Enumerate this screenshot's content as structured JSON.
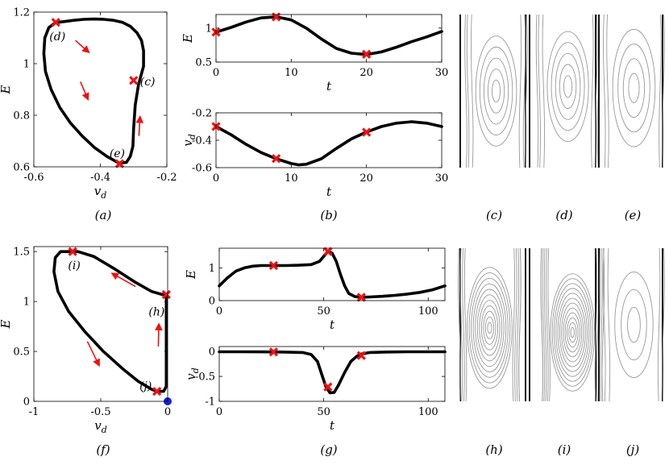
{
  "panel_labels": {
    "a": "(a)",
    "b": "(b)",
    "c": "(c)",
    "d": "(d)",
    "e": "(e)",
    "f": "(f)",
    "g": "(g)",
    "h": "(h)",
    "i": "(i)",
    "j": "(j)"
  },
  "axis_labels": {
    "E": "E",
    "vd": "v",
    "vd_sub": "d",
    "t": "t"
  },
  "colors": {
    "curve": "#000000",
    "marker": "#ee1111",
    "arrow": "#ee1111",
    "dot": "#1122dd",
    "contour": "#999999",
    "wall": "#000000"
  },
  "chart_data": [
    {
      "id": "a",
      "type": "line",
      "title": "",
      "xlabel": "v_d",
      "ylabel": "E",
      "xlim": [
        -0.6,
        -0.2
      ],
      "ylim": [
        0.6,
        1.2
      ],
      "xticks": [
        -0.6,
        -0.4,
        -0.2
      ],
      "xtick_labels": [
        "-0.6",
        "-0.4",
        "-0.2"
      ],
      "yticks": [
        0.6,
        0.8,
        1.0,
        1.2
      ],
      "ytick_labels": [
        "0.6",
        "0.8",
        "1",
        "1.2"
      ],
      "x": [
        -0.534,
        -0.555,
        -0.567,
        -0.57,
        -0.565,
        -0.548,
        -0.522,
        -0.49,
        -0.455,
        -0.418,
        -0.38,
        -0.345,
        -0.322,
        -0.31,
        -0.302,
        -0.3,
        -0.295,
        -0.285,
        -0.27,
        -0.27,
        -0.276,
        -0.29,
        -0.31,
        -0.333,
        -0.36,
        -0.39,
        -0.42,
        -0.45,
        -0.48,
        -0.51,
        -0.53,
        -0.534
      ],
      "y": [
        1.16,
        1.14,
        1.1,
        1.04,
        0.97,
        0.9,
        0.83,
        0.77,
        0.72,
        0.675,
        0.64,
        0.615,
        0.617,
        0.64,
        0.68,
        0.75,
        0.84,
        0.92,
        0.99,
        1.05,
        1.09,
        1.12,
        1.145,
        1.16,
        1.168,
        1.172,
        1.173,
        1.172,
        1.168,
        1.163,
        1.16,
        1.16
      ],
      "markers": [
        {
          "x": -0.534,
          "y": 1.16,
          "label": "(d)"
        },
        {
          "x": -0.3,
          "y": 0.935,
          "label": "(c)"
        },
        {
          "x": -0.342,
          "y": 0.612,
          "label": "(e)"
        }
      ],
      "arrows": [
        {
          "x": -0.475,
          "y": 1.09,
          "dx": 0.035,
          "dy": -0.04
        },
        {
          "x": -0.46,
          "y": 0.93,
          "dx": 0.02,
          "dy": -0.06
        },
        {
          "x": -0.284,
          "y": 0.72,
          "dx": 0.003,
          "dy": 0.065
        }
      ]
    },
    {
      "id": "b1",
      "type": "line",
      "xlabel": "t",
      "ylabel": "E",
      "xlim": [
        0,
        30
      ],
      "ylim": [
        0.5,
        1.2
      ],
      "xticks": [
        0,
        10,
        20,
        30
      ],
      "xtick_labels": [
        "0",
        "10",
        "20",
        "30"
      ],
      "yticks": [
        0.5,
        1.0
      ],
      "ytick_labels": [
        "0.5",
        "1"
      ],
      "x": [
        0,
        2,
        4,
        6,
        8,
        10,
        12,
        14,
        16,
        18,
        20,
        22,
        24,
        26,
        28,
        30
      ],
      "y": [
        0.94,
        1.01,
        1.09,
        1.15,
        1.165,
        1.12,
        1.0,
        0.84,
        0.7,
        0.63,
        0.61,
        0.65,
        0.72,
        0.8,
        0.87,
        0.95
      ],
      "markers": [
        {
          "x": 0,
          "y": 0.94
        },
        {
          "x": 8,
          "y": 1.165
        },
        {
          "x": 20,
          "y": 0.615
        }
      ]
    },
    {
      "id": "b2",
      "type": "line",
      "xlabel": "t",
      "ylabel": "v_d",
      "xlim": [
        0,
        30
      ],
      "ylim": [
        -0.6,
        -0.2
      ],
      "xticks": [
        0,
        10,
        20,
        30
      ],
      "xtick_labels": [
        "0",
        "10",
        "20",
        "30"
      ],
      "yticks": [
        -0.6,
        -0.4,
        -0.2
      ],
      "ytick_labels": [
        "-0.6",
        "-0.4",
        "-0.2"
      ],
      "x": [
        0,
        2,
        4,
        6,
        8,
        10,
        11,
        12,
        14,
        16,
        18,
        20,
        22,
        24,
        26,
        28,
        30
      ],
      "y": [
        -0.3,
        -0.36,
        -0.43,
        -0.49,
        -0.535,
        -0.57,
        -0.58,
        -0.575,
        -0.535,
        -0.46,
        -0.39,
        -0.34,
        -0.3,
        -0.275,
        -0.265,
        -0.275,
        -0.3
      ],
      "markers": [
        {
          "x": 0,
          "y": -0.3
        },
        {
          "x": 8,
          "y": -0.534
        },
        {
          "x": 20,
          "y": -0.342
        }
      ]
    },
    {
      "id": "f",
      "type": "line",
      "xlabel": "v_d",
      "ylabel": "E",
      "xlim": [
        -1,
        0
      ],
      "ylim": [
        0,
        1.55
      ],
      "xticks": [
        -1,
        -0.5,
        0
      ],
      "xtick_labels": [
        "-1",
        "-0.5",
        "0"
      ],
      "yticks": [
        0,
        0.5,
        1.0,
        1.5
      ],
      "ytick_labels": [
        "0",
        "0.5",
        "1",
        "1.5"
      ],
      "x": [
        -0.71,
        -0.8,
        -0.84,
        -0.85,
        -0.82,
        -0.74,
        -0.62,
        -0.48,
        -0.34,
        -0.22,
        -0.12,
        -0.08,
        -0.03,
        -0.01,
        -0.01,
        -0.01,
        -0.01,
        -0.04,
        -0.12,
        -0.25,
        -0.4,
        -0.55,
        -0.67,
        -0.71
      ],
      "y": [
        1.5,
        1.5,
        1.44,
        1.3,
        1.1,
        0.9,
        0.7,
        0.5,
        0.33,
        0.2,
        0.12,
        0.1,
        0.1,
        0.15,
        0.5,
        0.9,
        1.07,
        1.07,
        1.1,
        1.2,
        1.33,
        1.45,
        1.5,
        1.5
      ],
      "markers": [
        {
          "x": -0.71,
          "y": 1.5,
          "label": "(i)"
        },
        {
          "x": -0.01,
          "y": 1.07,
          "label": "(h)"
        },
        {
          "x": -0.08,
          "y": 0.1,
          "label": "(j)"
        }
      ],
      "arrows": [
        {
          "x": -0.24,
          "y": 1.15,
          "dx": -0.16,
          "dy": 0.12
        },
        {
          "x": -0.6,
          "y": 0.6,
          "dx": 0.08,
          "dy": -0.22
        },
        {
          "x": -0.07,
          "y": 0.55,
          "dx": 0.004,
          "dy": 0.2
        }
      ],
      "fixed_point": {
        "x": 0,
        "y": 0
      }
    },
    {
      "id": "g1",
      "type": "line",
      "xlabel": "t",
      "ylabel": "E",
      "xlim": [
        0,
        108
      ],
      "ylim": [
        0,
        1.6
      ],
      "xticks": [
        0,
        50,
        100
      ],
      "xtick_labels": [
        "0",
        "50",
        "100"
      ],
      "yticks": [
        0,
        1
      ],
      "ytick_labels": [
        "0",
        "1"
      ],
      "x": [
        0,
        4,
        8,
        12,
        16,
        20,
        26,
        32,
        38,
        44,
        48,
        50,
        52,
        54,
        56,
        58,
        60,
        62,
        65,
        68,
        72,
        78,
        84,
        90,
        96,
        102,
        108
      ],
      "y": [
        0.45,
        0.7,
        0.9,
        1.0,
        1.05,
        1.07,
        1.07,
        1.07,
        1.08,
        1.1,
        1.2,
        1.35,
        1.5,
        1.45,
        1.2,
        0.8,
        0.45,
        0.22,
        0.12,
        0.1,
        0.11,
        0.13,
        0.16,
        0.2,
        0.25,
        0.33,
        0.45
      ],
      "markers": [
        {
          "x": 26,
          "y": 1.07
        },
        {
          "x": 52,
          "y": 1.5
        },
        {
          "x": 68,
          "y": 0.1
        }
      ]
    },
    {
      "id": "g2",
      "type": "line",
      "xlabel": "t",
      "ylabel": "v_d",
      "xlim": [
        0,
        108
      ],
      "ylim": [
        -1,
        0.1
      ],
      "xticks": [
        0,
        50,
        100
      ],
      "xtick_labels": [
        "0",
        "50",
        "100"
      ],
      "yticks": [
        -1,
        -0.5,
        0
      ],
      "ytick_labels": [
        "-1",
        "-0.5",
        "0"
      ],
      "x": [
        0,
        10,
        20,
        30,
        40,
        44,
        47,
        49,
        51,
        53,
        55,
        57,
        60,
        63,
        66,
        68,
        72,
        80,
        90,
        100,
        108
      ],
      "y": [
        -0.005,
        -0.005,
        -0.007,
        -0.01,
        -0.02,
        -0.06,
        -0.2,
        -0.45,
        -0.7,
        -0.83,
        -0.82,
        -0.68,
        -0.42,
        -0.2,
        -0.09,
        -0.05,
        -0.02,
        -0.01,
        -0.005,
        -0.005,
        -0.005
      ],
      "markers": [
        {
          "x": 26,
          "y": -0.01
        },
        {
          "x": 52,
          "y": -0.71
        },
        {
          "x": 68,
          "y": -0.08
        }
      ]
    }
  ]
}
